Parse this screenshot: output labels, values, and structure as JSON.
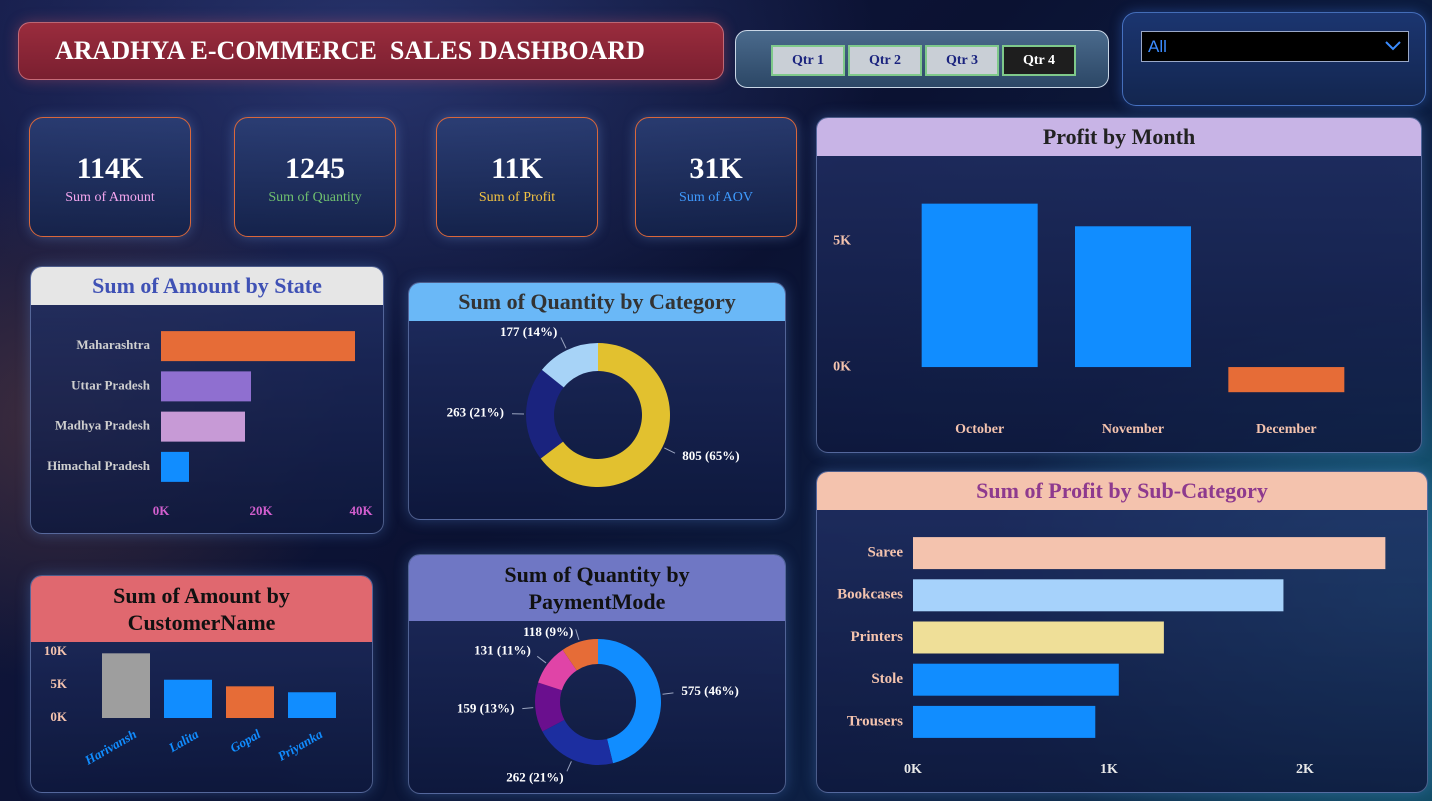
{
  "header": {
    "title": "ARADHYA E-COMMERCE  SALES DASHBOARD"
  },
  "slicer": {
    "options": [
      "Qtr 1",
      "Qtr 2",
      "Qtr 3",
      "Qtr 4"
    ],
    "selected_index": 3
  },
  "dropdown": {
    "value": "All"
  },
  "kpis": [
    {
      "value": "114K",
      "label": "Sum of Amount",
      "color": "#f4a6ef"
    },
    {
      "value": "1245",
      "label": "Sum of Quantity",
      "color": "#6fbf6f"
    },
    {
      "value": "11K",
      "label": "Sum of Profit",
      "color": "#f5c542"
    },
    {
      "value": "31K",
      "label": "Sum of AOV",
      "color": "#3f9bff"
    }
  ],
  "chart_data": [
    {
      "type": "bar",
      "orientation": "horizontal",
      "title": "Sum of Amount by State",
      "categories": [
        "Maharashtra",
        "Uttar Pradesh",
        "Madhya Pradesh",
        "Himachal Pradesh"
      ],
      "values": [
        38800,
        18000,
        16800,
        5600
      ],
      "colors": [
        "#e66c37",
        "#8f6fd0",
        "#c79ad6",
        "#118dff"
      ],
      "xlim": [
        0,
        40000
      ],
      "xticks": [
        {
          "value": 0,
          "label": "0K"
        },
        {
          "value": 20000,
          "label": "20K"
        },
        {
          "value": 40000,
          "label": "40K"
        }
      ]
    },
    {
      "type": "donut",
      "title": "Sum of Quantity by Category",
      "values": [
        805,
        263,
        177
      ],
      "value_labels": [
        "805 (65%)",
        "263 (21%)",
        "177 (14%)"
      ],
      "colors": [
        "#e2c12f",
        "#1a237e",
        "#a7d3f7"
      ]
    },
    {
      "type": "bar",
      "orientation": "vertical",
      "title": "Sum of Amount by CustomerName",
      "categories": [
        "Harivansh",
        "Lalita",
        "Gopal",
        "Priyanka"
      ],
      "values": [
        9800,
        5800,
        4800,
        3900
      ],
      "colors": [
        "#9e9e9e",
        "#118dff",
        "#e66c37",
        "#118dff"
      ],
      "ylim": [
        0,
        10000
      ],
      "yticks": [
        {
          "value": 0,
          "label": "0K"
        },
        {
          "value": 5000,
          "label": "5K"
        },
        {
          "value": 10000,
          "label": "10K"
        }
      ]
    },
    {
      "type": "donut",
      "title": "Sum of Quantity by PaymentMode",
      "values": [
        575,
        262,
        159,
        131,
        118
      ],
      "value_labels": [
        "575 (46%)",
        "262 (21%)",
        "159 (13%)",
        "131 (11%)",
        "118 (9%)"
      ],
      "colors": [
        "#118dff",
        "#1c2ea0",
        "#6a0f8e",
        "#e044a7",
        "#e66c37"
      ]
    },
    {
      "type": "bar",
      "orientation": "vertical",
      "title": "Profit by Month",
      "categories": [
        "October",
        "November",
        "December"
      ],
      "values": [
        6500,
        5600,
        -1000
      ],
      "colors": [
        "#118dff",
        "#118dff",
        "#e66c37"
      ],
      "ylim": [
        -1350,
        7600
      ],
      "yticks": [
        {
          "value": 0,
          "label": "0K"
        },
        {
          "value": 5000,
          "label": "5K"
        }
      ]
    },
    {
      "type": "bar",
      "orientation": "horizontal",
      "title": "Sum of Profit by Sub-Category",
      "categories": [
        "Saree",
        "Bookcases",
        "Printers",
        "Stole",
        "Trousers"
      ],
      "values": [
        2410,
        1890,
        1280,
        1050,
        930
      ],
      "colors": [
        "#f4c3ae",
        "#a6d2fb",
        "#efdf98",
        "#118dff",
        "#118dff"
      ],
      "xlim": [
        0,
        2500
      ],
      "xticks": [
        {
          "value": 0,
          "label": "0K"
        },
        {
          "value": 1000,
          "label": "1K"
        },
        {
          "value": 2000,
          "label": "2K"
        }
      ]
    }
  ]
}
